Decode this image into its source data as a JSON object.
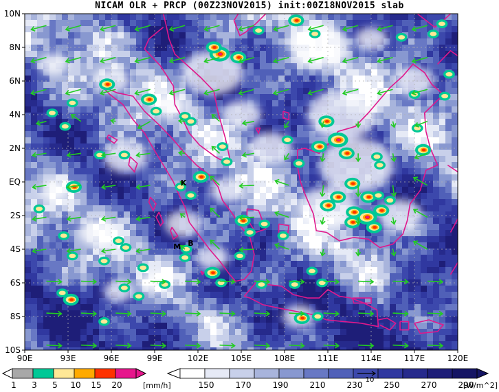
{
  "title": "NICAM OLR + PRCP (00Z23NOV2015) init:00Z18NOV2015 slab",
  "map": {
    "lon_range": [
      90,
      120
    ],
    "lat_range": [
      -10,
      10
    ],
    "lon_ticks": [
      "90E",
      "93E",
      "96E",
      "99E",
      "102E",
      "105E",
      "108E",
      "111E",
      "114E",
      "117E",
      "120E"
    ],
    "lat_ticks": [
      "10N",
      "8N",
      "6N",
      "4N",
      "2N",
      "EQ",
      "2S",
      "4S",
      "6S",
      "8S",
      "10S"
    ],
    "olr_colors": [
      "#1e1e78",
      "#262a8c",
      "#3038a0",
      "#3c48ac",
      "#5060b8",
      "#6878c4",
      "#8898d0",
      "#a8b4dc",
      "#c8d0ea",
      "#e6eaf6",
      "#ffffff"
    ],
    "coastline_color": "#e0188c",
    "wind_color": "#22cc22",
    "station_labels": [
      {
        "text": "K",
        "lon": 100.8,
        "lat": -0.2
      },
      {
        "text": "M",
        "lon": 100.3,
        "lat": -4.0
      },
      {
        "text": "B",
        "lon": 101.3,
        "lat": -3.8
      }
    ],
    "vector_ref_label": "10"
  },
  "precip_colorbar": {
    "labels": [
      "1",
      "3",
      "5",
      "10",
      "15",
      "20"
    ],
    "unit": "[mm/h]",
    "colors": [
      "#a8a8a8",
      "#00c896",
      "#ffe896",
      "#ffaa00",
      "#ff3200",
      "#e6168c"
    ]
  },
  "olr_colorbar": {
    "labels": [
      "150",
      "170",
      "190",
      "210",
      "230",
      "250",
      "270",
      "290"
    ],
    "unit": "[W/m^2]",
    "colors": [
      "#ffffff",
      "#e6eaf6",
      "#c8d0ea",
      "#a8b4dc",
      "#8898d0",
      "#6878c4",
      "#5060b8",
      "#3c48ac",
      "#3038a0",
      "#262a8c",
      "#1e1e78",
      "#141464"
    ]
  }
}
